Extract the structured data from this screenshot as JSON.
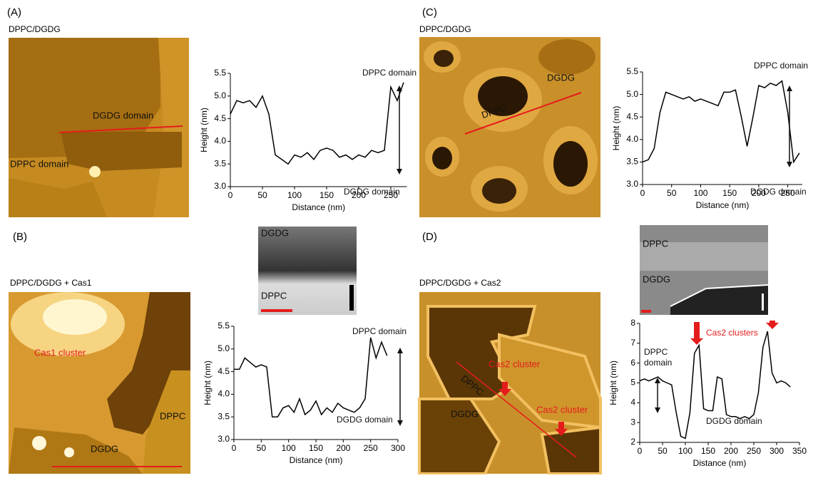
{
  "panels": [
    {
      "label": "(A)",
      "title": "DPPC/DGDG",
      "image_labels": [
        "DGDG domain",
        "DPPC domain"
      ]
    },
    {
      "label": "(B)",
      "title": "DPPC/DGDG + Cas1",
      "image_labels": [
        "Cas1 cluster",
        "DPPC",
        "DGDG"
      ],
      "inset_labels": [
        "DGDG",
        "DPPC"
      ]
    },
    {
      "label": "(C)",
      "title": "DPPC/DGDG",
      "image_labels": [
        "DGDG",
        "DPPC"
      ]
    },
    {
      "label": "(D)",
      "title": "DPPC/DGDG + Cas2",
      "image_labels": [
        "DPPC",
        "Cas2 cluster",
        "Cas2 cluster",
        "DGDG"
      ],
      "inset_labels": [
        "DPPC",
        "DGDG"
      ]
    }
  ],
  "chart_data": [
    {
      "type": "line",
      "x_label": "Distance (nm)",
      "y_label": "Height (nm)",
      "x": [
        0,
        10,
        20,
        30,
        40,
        50,
        60,
        70,
        80,
        90,
        100,
        110,
        120,
        130,
        140,
        150,
        160,
        170,
        180,
        190,
        200,
        210,
        220,
        230,
        240,
        250,
        260,
        270
      ],
      "series": [
        {
          "color": "#000000",
          "values": [
            4.6,
            4.9,
            4.85,
            4.9,
            4.75,
            5.0,
            4.6,
            3.7,
            3.6,
            3.5,
            3.7,
            3.65,
            3.75,
            3.6,
            3.8,
            3.85,
            3.8,
            3.65,
            3.7,
            3.6,
            3.7,
            3.65,
            3.8,
            3.75,
            3.8,
            5.2,
            4.9,
            5.3
          ]
        }
      ],
      "xlim": [
        0,
        275
      ],
      "ylim": [
        3,
        5.5
      ],
      "xticks": [
        0,
        50,
        100,
        150,
        200,
        250
      ],
      "yticks": [
        {
          "value": 3,
          "label": "3.0"
        },
        3.5,
        {
          "value": 4,
          "label": "4.0"
        },
        4.5,
        {
          "value": 5,
          "label": "5.0"
        },
        5.5
      ],
      "annotations": [
        "DPPC domain",
        "DGDG domain"
      ]
    },
    {
      "type": "line",
      "x_label": "Distance (nm)",
      "y_label": "Height (nm)",
      "x": [
        0,
        10,
        20,
        30,
        40,
        50,
        60,
        70,
        80,
        90,
        100,
        110,
        120,
        130,
        140,
        150,
        160,
        170,
        180,
        190,
        200,
        210,
        220,
        230,
        240,
        250,
        260,
        270,
        280
      ],
      "series": [
        {
          "color": "#000000",
          "values": [
            4.55,
            4.55,
            4.8,
            4.7,
            4.6,
            4.65,
            4.6,
            3.5,
            3.5,
            3.7,
            3.75,
            3.6,
            3.9,
            3.55,
            3.65,
            3.85,
            3.55,
            3.7,
            3.6,
            3.8,
            3.7,
            3.65,
            3.6,
            3.7,
            3.9,
            5.25,
            4.8,
            5.15,
            4.85
          ]
        }
      ],
      "xlim": [
        0,
        300
      ],
      "ylim": [
        3,
        5.5
      ],
      "xticks": [
        0,
        50,
        100,
        150,
        200,
        250,
        300
      ],
      "yticks": [
        {
          "value": 3,
          "label": "3.0"
        },
        3.5,
        {
          "value": 4,
          "label": "4.0"
        },
        4.5,
        {
          "value": 5,
          "label": "5.0"
        },
        5.5
      ],
      "annotations": [
        "DPPC domain",
        "DGDG domain"
      ]
    },
    {
      "type": "line",
      "x_label": "Distance (nm)",
      "y_label": "Height (nm)",
      "x": [
        0,
        10,
        20,
        30,
        40,
        50,
        60,
        70,
        80,
        90,
        100,
        110,
        120,
        130,
        140,
        150,
        160,
        170,
        180,
        190,
        200,
        210,
        220,
        230,
        240,
        250,
        260,
        270
      ],
      "series": [
        {
          "color": "#000000",
          "values": [
            3.5,
            3.55,
            3.8,
            4.6,
            5.05,
            5.0,
            4.95,
            4.9,
            4.95,
            4.85,
            4.9,
            4.85,
            4.8,
            4.75,
            5.05,
            5.05,
            5.1,
            4.5,
            3.85,
            4.5,
            5.2,
            5.15,
            5.25,
            5.2,
            5.3,
            4.6,
            3.5,
            3.7
          ]
        }
      ],
      "xlim": [
        0,
        275
      ],
      "ylim": [
        3,
        5.5
      ],
      "xticks": [
        0,
        50,
        100,
        150,
        200,
        250
      ],
      "yticks": [
        {
          "value": 3,
          "label": "3.0"
        },
        3.5,
        {
          "value": 4,
          "label": "4.0"
        },
        4.5,
        {
          "value": 5,
          "label": "5.0"
        },
        5.5
      ],
      "annotations": [
        "DPPC domain",
        "DGDG domain"
      ]
    },
    {
      "type": "line",
      "x_label": "Distance (nm)",
      "y_label": "Height (nm)",
      "x": [
        0,
        10,
        20,
        30,
        40,
        50,
        60,
        70,
        80,
        90,
        100,
        110,
        120,
        130,
        140,
        150,
        160,
        170,
        180,
        190,
        200,
        210,
        220,
        230,
        240,
        250,
        260,
        270,
        280,
        290,
        300,
        310,
        320,
        330
      ],
      "series": [
        {
          "color": "#000000",
          "values": [
            5.1,
            5.2,
            5.1,
            5.2,
            5.3,
            5.1,
            5.0,
            4.9,
            3.5,
            2.3,
            2.2,
            3.5,
            6.5,
            6.9,
            3.7,
            3.6,
            3.6,
            5.3,
            5.2,
            3.4,
            3.3,
            3.3,
            3.2,
            3.3,
            3.2,
            3.4,
            4.5,
            6.8,
            7.6,
            5.5,
            5.0,
            5.1,
            5.0,
            4.8
          ]
        }
      ],
      "xlim": [
        0,
        350
      ],
      "ylim": [
        2,
        8
      ],
      "xticks": [
        0,
        50,
        100,
        150,
        200,
        250,
        300,
        350
      ],
      "yticks": [
        2,
        3,
        4,
        5,
        6,
        7,
        8
      ],
      "annotations": [
        "DPPC",
        "domain",
        "Cas2 clusters",
        "DGDG domain"
      ]
    }
  ]
}
